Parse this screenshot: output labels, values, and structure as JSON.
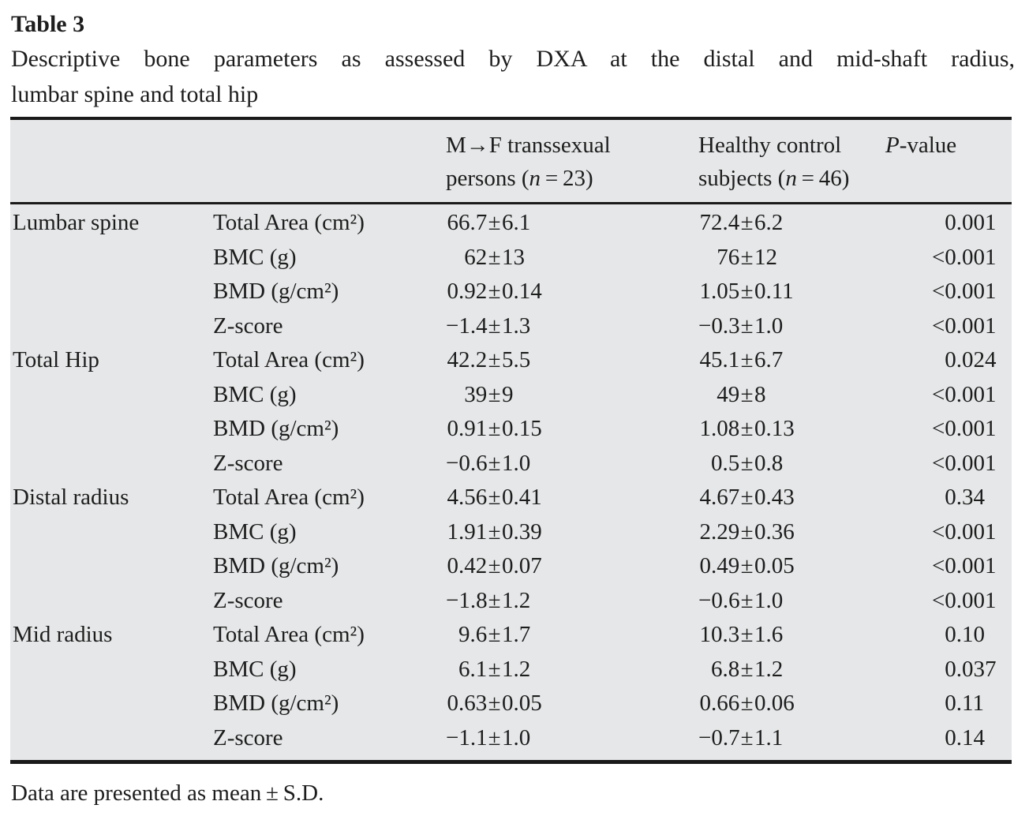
{
  "caption": {
    "label": "Table 3",
    "line1": "Descriptive bone parameters as assessed by DXA at the distal and mid-shaft radius,",
    "line2": "lumbar spine and total hip"
  },
  "table": {
    "header": {
      "col3": {
        "line1": "M→F transsexual",
        "line2_pre": "persons (",
        "n": "n",
        "line2_post": " = 23)"
      },
      "col4": {
        "line1": "Healthy control",
        "line2_pre": "subjects (",
        "n": "n",
        "line2_post": " = 46)"
      },
      "col5": {
        "italic": "P",
        "rest": "-value"
      }
    },
    "sections": [
      {
        "site": "Lumbar spine",
        "rows": [
          {
            "param": "Total Area (cm²)",
            "mf": "66.7±6.1",
            "hc": "72.4±6.2",
            "p": "0.001"
          },
          {
            "param": "BMC (g)",
            "mf": "62±13",
            "hc": "76±12",
            "p": "<0.001"
          },
          {
            "param": "BMD (g/cm²)",
            "mf": "0.92±0.14",
            "hc": "1.05±0.11",
            "p": "<0.001"
          },
          {
            "param": "Z-score",
            "mf": "−1.4±1.3",
            "hc": "−0.3±1.0",
            "p": "<0.001"
          }
        ]
      },
      {
        "site": "Total Hip",
        "rows": [
          {
            "param": "Total Area (cm²)",
            "mf": "42.2±5.5",
            "hc": "45.1±6.7",
            "p": "0.024"
          },
          {
            "param": "BMC (g)",
            "mf": "39±9",
            "hc": "49±8",
            "p": "<0.001"
          },
          {
            "param": "BMD (g/cm²)",
            "mf": "0.91±0.15",
            "hc": "1.08±0.13",
            "p": "<0.001"
          },
          {
            "param": "Z-score",
            "mf": "−0.6±1.0",
            "hc": "0.5±0.8",
            "p": "<0.001"
          }
        ]
      },
      {
        "site": "Distal radius",
        "rows": [
          {
            "param": "Total Area (cm²)",
            "mf": "4.56±0.41",
            "hc": "4.67±0.43",
            "p": "0.34"
          },
          {
            "param": "BMC (g)",
            "mf": "1.91±0.39",
            "hc": "2.29±0.36",
            "p": "<0.001"
          },
          {
            "param": "BMD (g/cm²)",
            "mf": "0.42±0.07",
            "hc": "0.49±0.05",
            "p": "<0.001"
          },
          {
            "param": "Z-score",
            "mf": "−1.8±1.2",
            "hc": "−0.6±1.0",
            "p": "<0.001"
          }
        ]
      },
      {
        "site": "Mid radius",
        "rows": [
          {
            "param": "Total Area (cm²)",
            "mf": "9.6±1.7",
            "hc": "10.3±1.6",
            "p": "0.10"
          },
          {
            "param": "BMC (g)",
            "mf": "6.1±1.2",
            "hc": "6.8±1.2",
            "p": "0.037"
          },
          {
            "param": "BMD (g/cm²)",
            "mf": "0.63±0.05",
            "hc": "0.66±0.06",
            "p": "0.11"
          },
          {
            "param": "Z-score",
            "mf": "−1.1±1.0",
            "hc": "−0.7±1.1",
            "p": "0.14"
          }
        ]
      }
    ]
  },
  "footnote": "Data are presented as mean ± S.D.",
  "colors": {
    "table_bg": "#e6e7e8",
    "rule": "#1a1a1a",
    "text": "#1d1d1d"
  }
}
